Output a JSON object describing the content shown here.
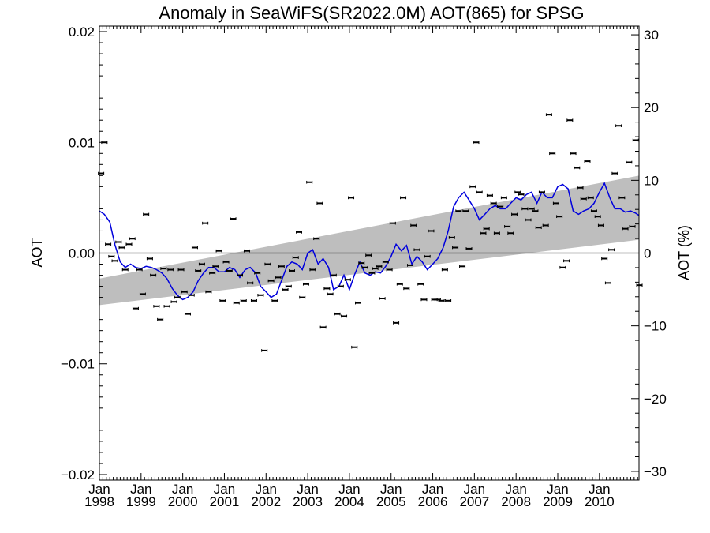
{
  "chart_data": {
    "type": "scatter",
    "title": "Anomaly in SeaWiFS(SR2022.0M) AOT(865) for SPSG",
    "ylabel": "AOT",
    "y2label": "AOT (%)",
    "xlim": [
      1998.0,
      2010.95
    ],
    "ylim": [
      -0.0205,
      0.0205
    ],
    "y2lim": [
      -31.2,
      31.2
    ],
    "x_ticks": [
      {
        "x": 1998,
        "label1": "Jan",
        "label2": "1998"
      },
      {
        "x": 1999,
        "label1": "Jan",
        "label2": "1999"
      },
      {
        "x": 2000,
        "label1": "Jan",
        "label2": "2000"
      },
      {
        "x": 2001,
        "label1": "Jan",
        "label2": "2001"
      },
      {
        "x": 2002,
        "label1": "Jan",
        "label2": "2002"
      },
      {
        "x": 2003,
        "label1": "Jan",
        "label2": "2003"
      },
      {
        "x": 2004,
        "label1": "Jan",
        "label2": "2004"
      },
      {
        "x": 2005,
        "label1": "Jan",
        "label2": "2005"
      },
      {
        "x": 2006,
        "label1": "Jan",
        "label2": "2006"
      },
      {
        "x": 2007,
        "label1": "Jan",
        "label2": "2007"
      },
      {
        "x": 2008,
        "label1": "Jan",
        "label2": "2008"
      },
      {
        "x": 2009,
        "label1": "Jan",
        "label2": "2009"
      },
      {
        "x": 2010,
        "label1": "Jan",
        "label2": "2010"
      }
    ],
    "y_ticks": [
      {
        "v": 0.02,
        "label": "0.02"
      },
      {
        "v": 0.01,
        "label": "0.01"
      },
      {
        "v": 0.0,
        "label": "0.00"
      },
      {
        "v": -0.01,
        "label": "−0.01"
      },
      {
        "v": -0.02,
        "label": "−0.02"
      }
    ],
    "y2_ticks": [
      {
        "v": 30,
        "label": "30"
      },
      {
        "v": 20,
        "label": "20"
      },
      {
        "v": 10,
        "label": "10"
      },
      {
        "v": 0,
        "label": "0"
      },
      {
        "v": -10,
        "label": "−10"
      },
      {
        "v": -20,
        "label": "−20"
      },
      {
        "v": -30,
        "label": "−30"
      }
    ],
    "zero_line": 0.0,
    "trend_band": {
      "x": [
        1998.0,
        2010.95
      ],
      "upper": [
        -0.0023,
        0.007
      ],
      "lower": [
        -0.0047,
        0.0012
      ],
      "color": "#bebebe"
    },
    "monthly_points": {
      "color": "#000000",
      "x": [
        1998.04,
        1998.12,
        1998.21,
        1998.29,
        1998.37,
        1998.46,
        1998.54,
        1998.62,
        1998.71,
        1998.79,
        1998.87,
        1998.96,
        1999.04,
        1999.12,
        1999.21,
        1999.29,
        1999.37,
        1999.46,
        1999.54,
        1999.62,
        1999.71,
        1999.79,
        1999.87,
        1999.96,
        2000.04,
        2000.12,
        2000.21,
        2000.29,
        2000.37,
        2000.46,
        2000.54,
        2000.62,
        2000.71,
        2000.79,
        2000.87,
        2000.96,
        2001.04,
        2001.12,
        2001.21,
        2001.29,
        2001.37,
        2001.46,
        2001.54,
        2001.62,
        2001.71,
        2001.79,
        2001.87,
        2001.96,
        2002.04,
        2002.12,
        2002.21,
        2002.29,
        2002.37,
        2002.46,
        2002.54,
        2002.62,
        2002.71,
        2002.79,
        2002.87,
        2002.96,
        2003.04,
        2003.12,
        2003.21,
        2003.29,
        2003.37,
        2003.46,
        2003.54,
        2003.62,
        2003.71,
        2003.79,
        2003.87,
        2003.96,
        2004.04,
        2004.12,
        2004.21,
        2004.29,
        2004.37,
        2004.46,
        2004.54,
        2004.62,
        2004.71,
        2004.79,
        2004.87,
        2004.96,
        2005.04,
        2005.12,
        2005.21,
        2005.29,
        2005.37,
        2005.46,
        2005.54,
        2005.62,
        2005.71,
        2005.79,
        2005.87,
        2005.96,
        2006.04,
        2006.12,
        2006.21,
        2006.29,
        2006.37,
        2006.46,
        2006.54,
        2006.62,
        2006.71,
        2006.79,
        2006.87,
        2006.96,
        2007.04,
        2007.12,
        2007.21,
        2007.29,
        2007.37,
        2007.46,
        2007.54,
        2007.62,
        2007.71,
        2007.79,
        2007.87,
        2007.96,
        2008.04,
        2008.12,
        2008.21,
        2008.29,
        2008.37,
        2008.46,
        2008.54,
        2008.62,
        2008.71,
        2008.79,
        2008.87,
        2008.96,
        2009.04,
        2009.12,
        2009.21,
        2009.29,
        2009.37,
        2009.46,
        2009.54,
        2009.62,
        2009.71,
        2009.79,
        2009.87,
        2009.96,
        2010.04,
        2010.12,
        2010.21,
        2010.29,
        2010.37,
        2010.46,
        2010.54,
        2010.62,
        2010.71,
        2010.79,
        2010.87,
        2010.96
      ],
      "y": [
        0.0072,
        0.01,
        0.0008,
        -0.0003,
        -0.0007,
        0.001,
        0.0005,
        -0.0015,
        0.0008,
        0.0013,
        -0.005,
        -0.0015,
        -0.0037,
        0.0035,
        -0.0005,
        -0.002,
        -0.0048,
        -0.006,
        -0.0014,
        -0.0048,
        -0.0015,
        -0.0044,
        -0.004,
        -0.0015,
        -0.0035,
        -0.0055,
        -0.0038,
        0.0005,
        -0.0016,
        -0.001,
        0.0027,
        -0.0035,
        -0.0018,
        -0.0012,
        0.0002,
        -0.0043,
        -0.0008,
        -0.0016,
        0.0031,
        -0.0045,
        -0.002,
        -0.0043,
        0.0002,
        -0.0027,
        -0.0043,
        -0.0018,
        -0.0038,
        -0.0088,
        -0.001,
        -0.0025,
        -0.0043,
        -0.0022,
        -0.0012,
        -0.0033,
        -0.003,
        -0.0016,
        -0.0004,
        0.0019,
        -0.004,
        -0.0028,
        0.0064,
        -0.0015,
        0.0013,
        0.0045,
        -0.0067,
        -0.0032,
        -0.0037,
        -0.002,
        -0.0055,
        -0.003,
        -0.0057,
        -0.0024,
        0.005,
        -0.0085,
        -0.0045,
        -0.0009,
        -0.0013,
        -0.0002,
        -0.0018,
        -0.0014,
        -0.0012,
        -0.0041,
        -0.0008,
        -0.0015,
        0.0027,
        -0.0063,
        -0.0028,
        0.005,
        -0.0032,
        -0.0011,
        0.0025,
        0.0003,
        -0.0028,
        -0.0042,
        -0.0003,
        0.002,
        -0.0042,
        -0.0042,
        -0.0043,
        -0.0015,
        -0.0043,
        0.0014,
        0.0005,
        0.0038,
        -0.0012,
        0.0038,
        0.0004,
        0.006,
        0.01,
        0.0055,
        0.0018,
        0.0022,
        0.0052,
        0.0045,
        0.0018,
        0.0042,
        0.005,
        0.0024,
        0.0018,
        0.0035,
        0.0055,
        0.0053,
        0.004,
        0.003,
        0.004,
        0.0038,
        0.0023,
        0.0055,
        0.0025,
        0.0125,
        0.009,
        0.0045,
        0.0033,
        -0.0013,
        -0.0007,
        0.012,
        0.009,
        0.0077,
        0.0059,
        0.0049,
        0.0083,
        0.005,
        0.0038,
        0.0033,
        0.0025,
        -0.0005,
        -0.0027,
        0.0003,
        0.0072,
        0.0115,
        0.005,
        0.0022,
        0.0082,
        0.0024,
        0.0102,
        -0.0029
      ]
    },
    "smoothed_line": {
      "color": "#0000dd",
      "x": [
        1998.0,
        1998.12,
        1998.25,
        1998.37,
        1998.5,
        1998.62,
        1998.75,
        1998.87,
        1999.0,
        1999.12,
        1999.25,
        1999.37,
        1999.5,
        1999.62,
        1999.75,
        1999.87,
        2000.0,
        2000.12,
        2000.25,
        2000.37,
        2000.5,
        2000.62,
        2000.75,
        2000.87,
        2001.0,
        2001.12,
        2001.25,
        2001.37,
        2001.5,
        2001.62,
        2001.75,
        2001.87,
        2002.0,
        2002.12,
        2002.25,
        2002.37,
        2002.5,
        2002.62,
        2002.75,
        2002.87,
        2003.0,
        2003.12,
        2003.25,
        2003.37,
        2003.5,
        2003.62,
        2003.75,
        2003.87,
        2004.0,
        2004.12,
        2004.25,
        2004.37,
        2004.5,
        2004.62,
        2004.75,
        2004.87,
        2005.0,
        2005.12,
        2005.25,
        2005.37,
        2005.5,
        2005.62,
        2005.75,
        2005.87,
        2006.0,
        2006.12,
        2006.25,
        2006.37,
        2006.5,
        2006.62,
        2006.75,
        2006.87,
        2007.0,
        2007.12,
        2007.25,
        2007.37,
        2007.5,
        2007.62,
        2007.75,
        2007.87,
        2008.0,
        2008.12,
        2008.25,
        2008.37,
        2008.5,
        2008.62,
        2008.75,
        2008.87,
        2009.0,
        2009.12,
        2009.25,
        2009.37,
        2009.5,
        2009.62,
        2009.75,
        2009.87,
        2010.0,
        2010.12,
        2010.25,
        2010.37,
        2010.5,
        2010.62,
        2010.75,
        2010.87,
        2010.95
      ],
      "y": [
        0.0038,
        0.0035,
        0.0028,
        0.0008,
        -0.0008,
        -0.0013,
        -0.001,
        -0.0013,
        -0.0014,
        -0.0012,
        -0.0013,
        -0.0015,
        -0.0018,
        -0.0023,
        -0.0032,
        -0.0038,
        -0.0042,
        -0.004,
        -0.0035,
        -0.0025,
        -0.0018,
        -0.0013,
        -0.0013,
        -0.0017,
        -0.0017,
        -0.0013,
        -0.0015,
        -0.0022,
        -0.0015,
        -0.0013,
        -0.0018,
        -0.003,
        -0.0035,
        -0.004,
        -0.0037,
        -0.0025,
        -0.0012,
        -0.0008,
        -0.001,
        -0.0015,
        0.0,
        0.0003,
        -0.001,
        -0.0005,
        -0.0013,
        -0.0033,
        -0.003,
        -0.002,
        -0.0033,
        -0.002,
        -0.0008,
        -0.0018,
        -0.002,
        -0.0017,
        -0.0018,
        -0.0012,
        -0.0003,
        0.0008,
        0.0002,
        0.0007,
        -0.001,
        -0.0003,
        -0.0008,
        -0.0015,
        -0.001,
        -0.0005,
        0.0005,
        0.002,
        0.0042,
        0.005,
        0.0055,
        0.0048,
        0.004,
        0.003,
        0.0035,
        0.004,
        0.0043,
        0.004,
        0.004,
        0.0045,
        0.005,
        0.0048,
        0.0053,
        0.0055,
        0.0045,
        0.0055,
        0.005,
        0.005,
        0.006,
        0.0062,
        0.0058,
        0.0038,
        0.0035,
        0.0038,
        0.004,
        0.0045,
        0.0055,
        0.0063,
        0.005,
        0.004,
        0.004,
        0.0037,
        0.0038,
        0.0036,
        0.0034
      ]
    }
  }
}
